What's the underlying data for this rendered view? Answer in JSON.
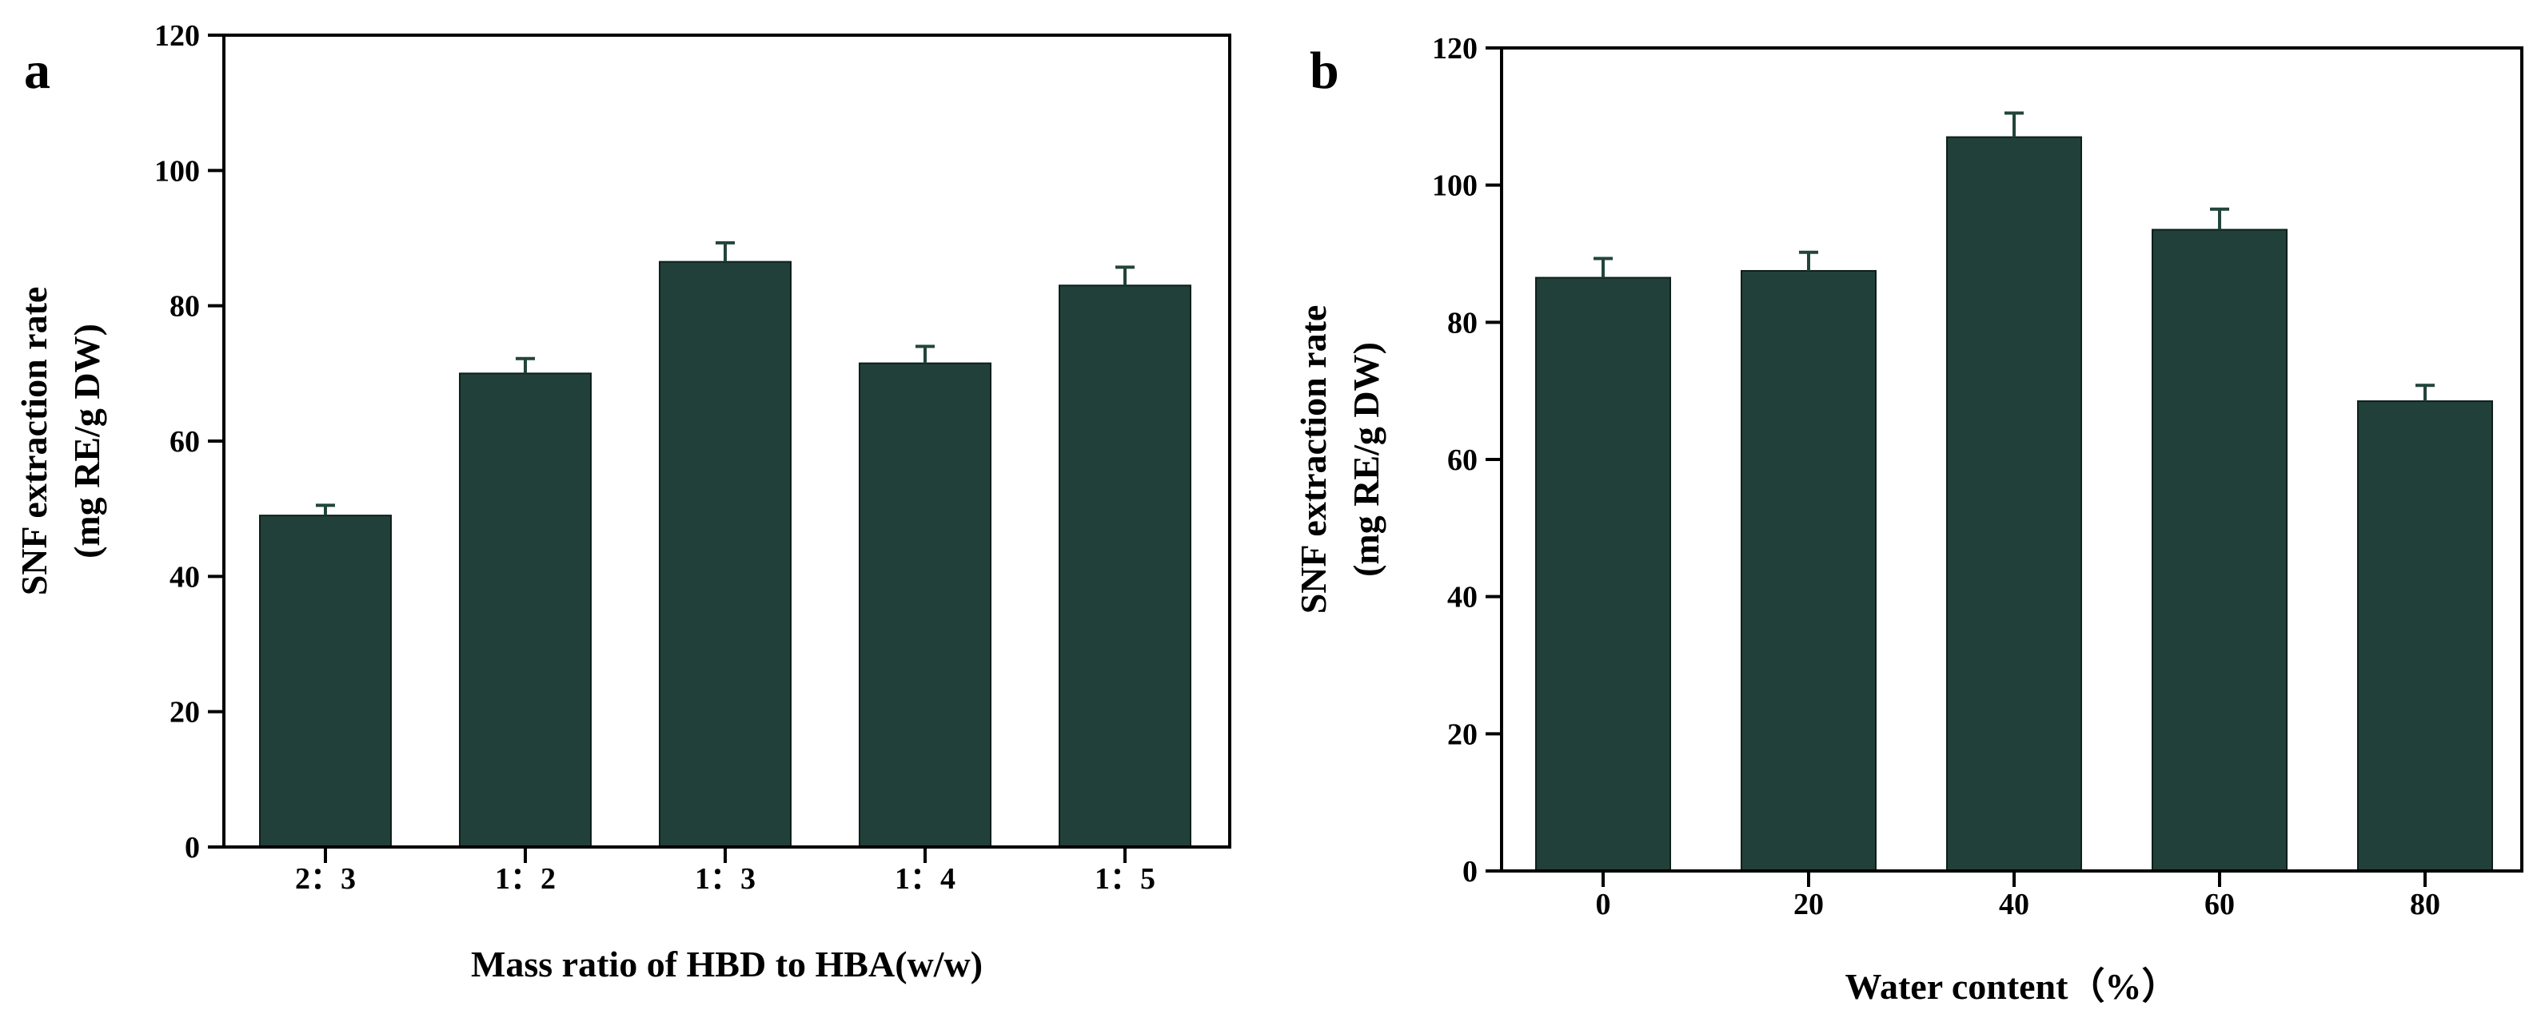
{
  "chart_data": [
    {
      "panel": "a",
      "type": "bar",
      "categories": [
        "2：3",
        "1：2",
        "1：3",
        "1：4",
        "1：5"
      ],
      "values": [
        49,
        70,
        86.5,
        71.5,
        83
      ],
      "errors": [
        1.5,
        2.2,
        2.8,
        2.5,
        2.7
      ],
      "xlabel": "Mass ratio of HBD to HBA(w/w)",
      "ylabel_line1": "SNF extraction rate",
      "ylabel_line2": "(mg RE/g DW)",
      "ylim": [
        0,
        120
      ],
      "yticks": [
        0,
        20,
        40,
        60,
        80,
        100,
        120
      ],
      "bar_color": "#22403a"
    },
    {
      "panel": "b",
      "type": "bar",
      "categories": [
        "0",
        "20",
        "40",
        "60",
        "80"
      ],
      "values": [
        86.5,
        87.5,
        107,
        93.5,
        68.5
      ],
      "errors": [
        2.8,
        2.7,
        3.5,
        3,
        2.3
      ],
      "xlabel": "Water content（%）",
      "ylabel_line1": "SNF extraction rate",
      "ylabel_line2": "(mg RE/g DW)",
      "ylim": [
        0,
        120
      ],
      "yticks": [
        0,
        20,
        40,
        60,
        80,
        100,
        120
      ],
      "bar_color": "#22403a"
    }
  ]
}
